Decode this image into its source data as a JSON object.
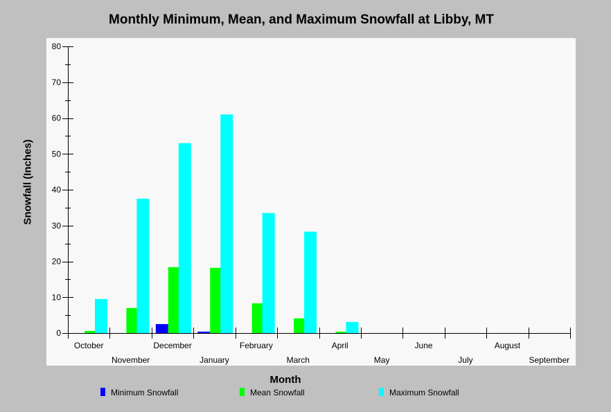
{
  "chart_data": {
    "type": "bar",
    "title": "Monthly Minimum, Mean, and Maximum Snowfall at Libby, MT",
    "xlabel": "Month",
    "ylabel": "Snowfall (Inches)",
    "ylim": [
      0,
      80
    ],
    "yticks": [
      0,
      10,
      20,
      30,
      40,
      50,
      60,
      70,
      80
    ],
    "categories": [
      "October",
      "November",
      "December",
      "January",
      "February",
      "March",
      "April",
      "May",
      "June",
      "July",
      "August",
      "September"
    ],
    "series": [
      {
        "name": "Minimum Snowfall",
        "color": "#0000ff",
        "values": [
          0,
          0,
          2.5,
          0.4,
          0,
          0,
          0,
          0,
          0,
          0,
          0,
          0
        ]
      },
      {
        "name": "Mean Snowfall",
        "color": "#00ff00",
        "values": [
          0.6,
          7.0,
          18.4,
          18.2,
          8.3,
          4.1,
          0.4,
          0,
          0,
          0,
          0,
          0
        ]
      },
      {
        "name": "Maximum Snowfall",
        "color": "#00ffff",
        "values": [
          9.5,
          37.5,
          53.0,
          61.0,
          33.5,
          28.3,
          3.1,
          0,
          0,
          0,
          0,
          0
        ]
      }
    ],
    "legend_position": "bottom",
    "grid": false
  }
}
